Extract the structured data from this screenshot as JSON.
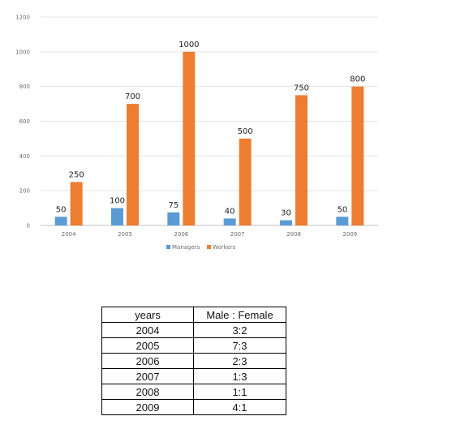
{
  "chart_data": {
    "type": "bar",
    "categories": [
      "2004",
      "2005",
      "2006",
      "2007",
      "2008",
      "2009"
    ],
    "series": [
      {
        "name": "Managers",
        "values": [
          50,
          100,
          75,
          40,
          30,
          50
        ],
        "color": "#5b9bd5"
      },
      {
        "name": "Workers",
        "values": [
          250,
          700,
          1000,
          500,
          750,
          800
        ],
        "color": "#ed7d31"
      }
    ],
    "data_labels": {
      "Managers": [
        "50",
        "100",
        "75",
        "40",
        "30",
        "50"
      ],
      "Workers": [
        "250",
        "700",
        "1000",
        "500",
        "750",
        "800"
      ]
    },
    "yticks": [
      "0",
      "200",
      "400",
      "600",
      "800",
      "1000",
      "1200"
    ],
    "ylim": [
      0,
      1200
    ],
    "grid": true,
    "legend": "bottom",
    "title": "",
    "xlabel": "",
    "ylabel": ""
  },
  "table": {
    "headers": [
      "years",
      "Male : Female"
    ],
    "rows": [
      [
        "2004",
        "3:2"
      ],
      [
        "2005",
        "7:3"
      ],
      [
        "2006",
        "2:3"
      ],
      [
        "2007",
        "1:3"
      ],
      [
        "2008",
        "1:1"
      ],
      [
        "2009",
        "4:1"
      ]
    ]
  }
}
